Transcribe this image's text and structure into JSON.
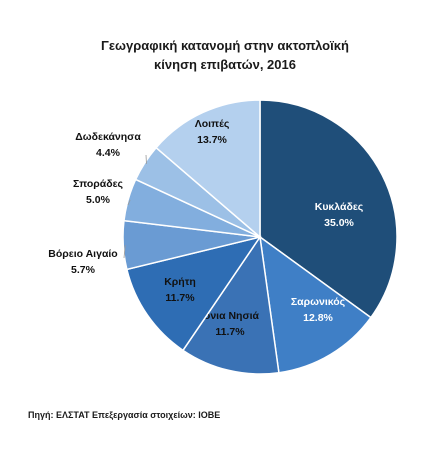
{
  "chart_data": {
    "type": "pie",
    "title": "Γεωγραφική κατανομή στην ακτοπλοϊκή κίνηση επιβατών, 2016",
    "categories": [
      "Κυκλάδες",
      "Σαρωνικός",
      "Ιόνια Νησιά",
      "Κρήτη",
      "Βόρειο Αιγαίο",
      "Σποράδες",
      "Δωδεκάνησα",
      "Λοιπές"
    ],
    "values": [
      35.0,
      12.8,
      11.7,
      11.7,
      5.7,
      5.0,
      4.4,
      13.7
    ],
    "value_labels": [
      "35.0%",
      "12.8%",
      "11.7%",
      "11.7%",
      "5.7%",
      "5.0%",
      "4.4%",
      "13.7%"
    ],
    "colors": [
      "#1f4e79",
      "#3f7fc6",
      "#3a72b5",
      "#2e6db4",
      "#6a9bd3",
      "#82aede",
      "#9cc0e6",
      "#b4d0ee"
    ],
    "source": "Πηγή: ΕΛΣΤΑΤ Επεξεργασία στοιχείων: ΙΟΒΕ"
  }
}
